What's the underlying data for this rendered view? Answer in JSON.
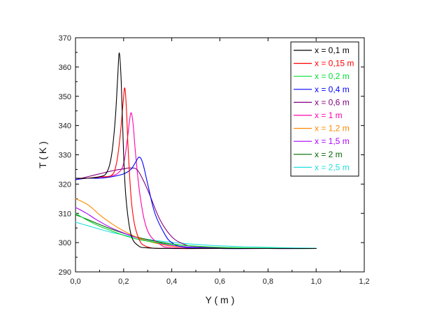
{
  "chart_data": {
    "type": "line",
    "title": "",
    "xlabel": "Y ( m )",
    "ylabel": "T ( K )",
    "xlim": [
      0.0,
      1.2
    ],
    "ylim": [
      290,
      370
    ],
    "x_ticks": [
      0.0,
      0.2,
      0.4,
      0.6,
      0.8,
      1.0,
      1.2
    ],
    "x_tick_labels": [
      "0,0",
      "0,2",
      "0,4",
      "0,6",
      "0,8",
      "1,0",
      "1,2"
    ],
    "y_ticks": [
      290,
      300,
      310,
      320,
      330,
      340,
      350,
      360,
      370
    ],
    "y_tick_labels": [
      "290",
      "300",
      "310",
      "320",
      "330",
      "340",
      "350",
      "360",
      "370"
    ],
    "grid": false,
    "legend_position": "top-right",
    "series": [
      {
        "name": "x = 0,1 m",
        "color": "#000000",
        "x": [
          0,
          0.05,
          0.1,
          0.13,
          0.15,
          0.165,
          0.175,
          0.182,
          0.19,
          0.2,
          0.21,
          0.23,
          0.26,
          0.3,
          0.4,
          0.6,
          0.8,
          1.0
        ],
        "y": [
          322,
          322,
          322.5,
          324,
          330,
          342,
          356,
          364.8,
          355,
          330,
          315,
          303,
          299,
          298.2,
          298,
          298,
          298,
          298
        ]
      },
      {
        "name": "x = 0,15 m",
        "color": "#ff0000",
        "x": [
          0,
          0.05,
          0.1,
          0.15,
          0.17,
          0.185,
          0.198,
          0.205,
          0.212,
          0.22,
          0.235,
          0.26,
          0.3,
          0.4,
          0.6,
          0.8,
          1.0
        ],
        "y": [
          322,
          322,
          322.5,
          323,
          327,
          336,
          348,
          352.8,
          345,
          330,
          312,
          302,
          298.5,
          298,
          298,
          298,
          298
        ]
      },
      {
        "name": "x = 0,2 m",
        "color": "#00dd33",
        "x": [
          0,
          0.05,
          0.1,
          0.15,
          0.2,
          0.25,
          0.3,
          0.35,
          0.4,
          0.5,
          0.6,
          0.7,
          0.8,
          0.9,
          1.0
        ],
        "y": [
          310,
          307.6,
          305.6,
          304,
          302.5,
          301.3,
          300.5,
          299.9,
          299.4,
          298.8,
          298.4,
          298.2,
          298.1,
          298,
          298
        ]
      },
      {
        "name": "x = 0,4 m",
        "color": "#0000ff",
        "x": [
          0,
          0.05,
          0.1,
          0.15,
          0.2,
          0.23,
          0.25,
          0.265,
          0.28,
          0.3,
          0.33,
          0.37,
          0.4,
          0.45,
          0.6,
          0.8,
          1.0
        ],
        "y": [
          321.5,
          322,
          322,
          322.5,
          323.5,
          325,
          327.5,
          329.2,
          327,
          320,
          310,
          303,
          300,
          298.5,
          298,
          298,
          298
        ]
      },
      {
        "name": "x = 0,6 m",
        "color": "#800080",
        "x": [
          0,
          0.05,
          0.1,
          0.15,
          0.2,
          0.23,
          0.26,
          0.3,
          0.35,
          0.4,
          0.45,
          0.5,
          0.6,
          0.8,
          1.0
        ],
        "y": [
          321.5,
          322.5,
          323.5,
          324.5,
          325.2,
          325.5,
          324.5,
          318,
          308,
          302,
          299.5,
          298.6,
          298.2,
          298,
          298
        ]
      },
      {
        "name": "x = 1 m",
        "color": "#ff00aa",
        "x": [
          0,
          0.05,
          0.1,
          0.15,
          0.18,
          0.2,
          0.215,
          0.225,
          0.232,
          0.24,
          0.25,
          0.27,
          0.3,
          0.35,
          0.4,
          0.6,
          0.8,
          1.0
        ],
        "y": [
          322,
          322,
          322.3,
          322.8,
          324,
          327,
          335,
          342,
          344.3,
          340,
          330,
          315,
          304,
          299.5,
          298.3,
          298,
          298,
          298
        ]
      },
      {
        "name": "x = 1,2 m",
        "color": "#ff8800",
        "x": [
          0,
          0.02,
          0.05,
          0.08,
          0.1,
          0.15,
          0.2,
          0.25,
          0.3,
          0.35,
          0.4,
          0.5,
          0.6,
          0.8,
          1.0
        ],
        "y": [
          315,
          314.3,
          313,
          311,
          309.5,
          306.5,
          304,
          302,
          300.5,
          299.5,
          298.8,
          298.2,
          298,
          298,
          298
        ]
      },
      {
        "name": "x = 1,5 m",
        "color": "#aa00ff",
        "x": [
          0,
          0.02,
          0.05,
          0.08,
          0.1,
          0.15,
          0.2,
          0.25,
          0.3,
          0.35,
          0.4,
          0.5,
          0.6,
          0.8,
          1.0
        ],
        "y": [
          312,
          311.2,
          309.8,
          308.2,
          307.2,
          305,
          303.3,
          301.8,
          300.6,
          299.7,
          299,
          298.3,
          298.1,
          298,
          298
        ]
      },
      {
        "name": "x = 2 m",
        "color": "#006600",
        "x": [
          0,
          0.02,
          0.05,
          0.1,
          0.15,
          0.2,
          0.25,
          0.3,
          0.35,
          0.4,
          0.5,
          0.6,
          0.8,
          1.0
        ],
        "y": [
          309.5,
          308.9,
          307.9,
          306.2,
          304.6,
          303.2,
          302,
          301,
          300.2,
          299.5,
          298.7,
          298.3,
          298,
          298
        ]
      },
      {
        "name": "x = 2,5 m",
        "color": "#22dddd",
        "x": [
          0,
          0.05,
          0.1,
          0.15,
          0.2,
          0.25,
          0.3,
          0.4,
          0.5,
          0.6,
          0.7,
          0.8,
          0.9,
          1.0
        ],
        "y": [
          307,
          305.8,
          304.6,
          303.5,
          302.6,
          301.8,
          301.1,
          300.1,
          299.4,
          298.9,
          298.6,
          298.4,
          298.2,
          298.1
        ]
      }
    ]
  }
}
